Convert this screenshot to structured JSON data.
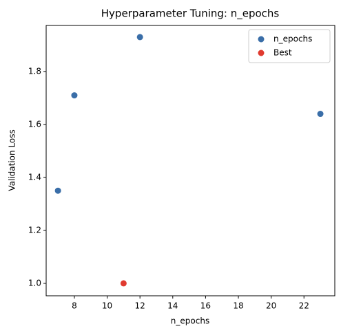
{
  "chart_data": {
    "type": "scatter",
    "title": "Hyperparameter Tuning: n_epochs",
    "x_label": "n_epochs",
    "y_label": "Validation Loss",
    "series": [
      {
        "name": "n_epochs",
        "color": "#3a6ea8",
        "x": [
          7,
          8,
          12,
          23
        ],
        "values": [
          1.35,
          1.71,
          1.93,
          1.64
        ]
      },
      {
        "name": "Best",
        "color": "#e03a2f",
        "x": [
          11
        ],
        "values": [
          1.0
        ]
      }
    ],
    "xlim": [
      6.28,
      23.88
    ],
    "xticks": [
      8,
      10,
      12,
      14,
      16,
      18,
      20,
      22
    ],
    "ylim": [
      0.953,
      1.974
    ],
    "yticks": [
      {
        "value": 1.0,
        "label": "1.0"
      },
      1.2,
      1.4,
      1.6,
      1.8
    ],
    "legend": "upper right"
  }
}
